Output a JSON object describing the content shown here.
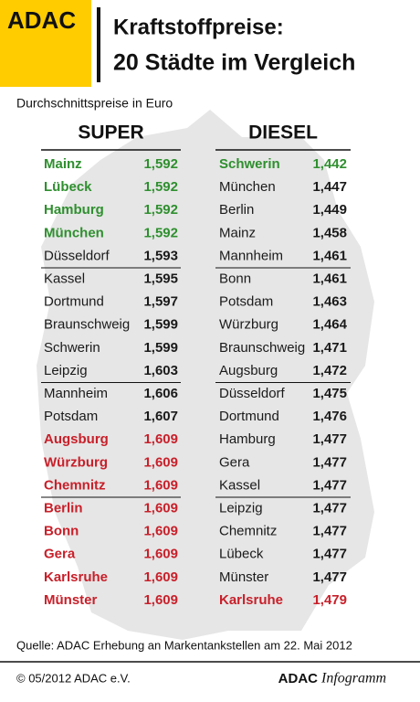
{
  "header": {
    "logo": "ADAC",
    "title_line1": "Kraftstoffpreise:",
    "title_line2": "20 Städte im Vergleich"
  },
  "subtitle": "Durchschnittspreise in Euro",
  "tables": [
    {
      "heading": "SUPER",
      "rows": [
        {
          "city": "Mainz",
          "price": "1,592",
          "color": "#2f8f2f"
        },
        {
          "city": "Lübeck",
          "price": "1,592",
          "color": "#2f8f2f"
        },
        {
          "city": "Hamburg",
          "price": "1,592",
          "color": "#2f8f2f"
        },
        {
          "city": "München",
          "price": "1,592",
          "color": "#2f8f2f"
        },
        {
          "city": "Düsseldorf",
          "price": "1,593",
          "color": "#1a1a1a"
        },
        {
          "city": "Kassel",
          "price": "1,595",
          "color": "#1a1a1a"
        },
        {
          "city": "Dortmund",
          "price": "1,597",
          "color": "#1a1a1a"
        },
        {
          "city": "Braunschweig",
          "price": "1,599",
          "color": "#1a1a1a"
        },
        {
          "city": "Schwerin",
          "price": "1,599",
          "color": "#1a1a1a"
        },
        {
          "city": "Leipzig",
          "price": "1,603",
          "color": "#1a1a1a"
        },
        {
          "city": "Mannheim",
          "price": "1,606",
          "color": "#1a1a1a"
        },
        {
          "city": "Potsdam",
          "price": "1,607",
          "color": "#1a1a1a"
        },
        {
          "city": "Augsburg",
          "price": "1,609",
          "color": "#c8202a"
        },
        {
          "city": "Würzburg",
          "price": "1,609",
          "color": "#c8202a"
        },
        {
          "city": "Chemnitz",
          "price": "1,609",
          "color": "#c8202a"
        },
        {
          "city": "Berlin",
          "price": "1,609",
          "color": "#c8202a"
        },
        {
          "city": "Bonn",
          "price": "1,609",
          "color": "#c8202a"
        },
        {
          "city": "Gera",
          "price": "1,609",
          "color": "#c8202a"
        },
        {
          "city": "Karlsruhe",
          "price": "1,609",
          "color": "#c8202a"
        },
        {
          "city": "Münster",
          "price": "1,609",
          "color": "#c8202a"
        }
      ]
    },
    {
      "heading": "DIESEL",
      "rows": [
        {
          "city": "Schwerin",
          "price": "1,442",
          "color": "#2f8f2f"
        },
        {
          "city": "München",
          "price": "1,447",
          "color": "#1a1a1a"
        },
        {
          "city": "Berlin",
          "price": "1,449",
          "color": "#1a1a1a"
        },
        {
          "city": "Mainz",
          "price": "1,458",
          "color": "#1a1a1a"
        },
        {
          "city": "Mannheim",
          "price": "1,461",
          "color": "#1a1a1a"
        },
        {
          "city": "Bonn",
          "price": "1,461",
          "color": "#1a1a1a"
        },
        {
          "city": "Potsdam",
          "price": "1,463",
          "color": "#1a1a1a"
        },
        {
          "city": "Würzburg",
          "price": "1,464",
          "color": "#1a1a1a"
        },
        {
          "city": "Braunschweig",
          "price": "1,471",
          "color": "#1a1a1a"
        },
        {
          "city": "Augsburg",
          "price": "1,472",
          "color": "#1a1a1a"
        },
        {
          "city": "Düsseldorf",
          "price": "1,475",
          "color": "#1a1a1a"
        },
        {
          "city": "Dortmund",
          "price": "1,476",
          "color": "#1a1a1a"
        },
        {
          "city": "Hamburg",
          "price": "1,477",
          "color": "#1a1a1a"
        },
        {
          "city": "Gera",
          "price": "1,477",
          "color": "#1a1a1a"
        },
        {
          "city": "Kassel",
          "price": "1,477",
          "color": "#1a1a1a"
        },
        {
          "city": "Leipzig",
          "price": "1,477",
          "color": "#1a1a1a"
        },
        {
          "city": "Chemnitz",
          "price": "1,477",
          "color": "#1a1a1a"
        },
        {
          "city": "Lübeck",
          "price": "1,477",
          "color": "#1a1a1a"
        },
        {
          "city": "Münster",
          "price": "1,477",
          "color": "#1a1a1a"
        },
        {
          "city": "Karlsruhe",
          "price": "1,479",
          "color": "#c8202a"
        }
      ]
    }
  ],
  "source": "Quelle: ADAC Erhebung an Markentankstellen am 22. Mai 2012",
  "footer": {
    "copyright": "© 05/2012 ADAC e.V.",
    "brand": "ADAC",
    "brand_suffix": "Infogramm"
  }
}
